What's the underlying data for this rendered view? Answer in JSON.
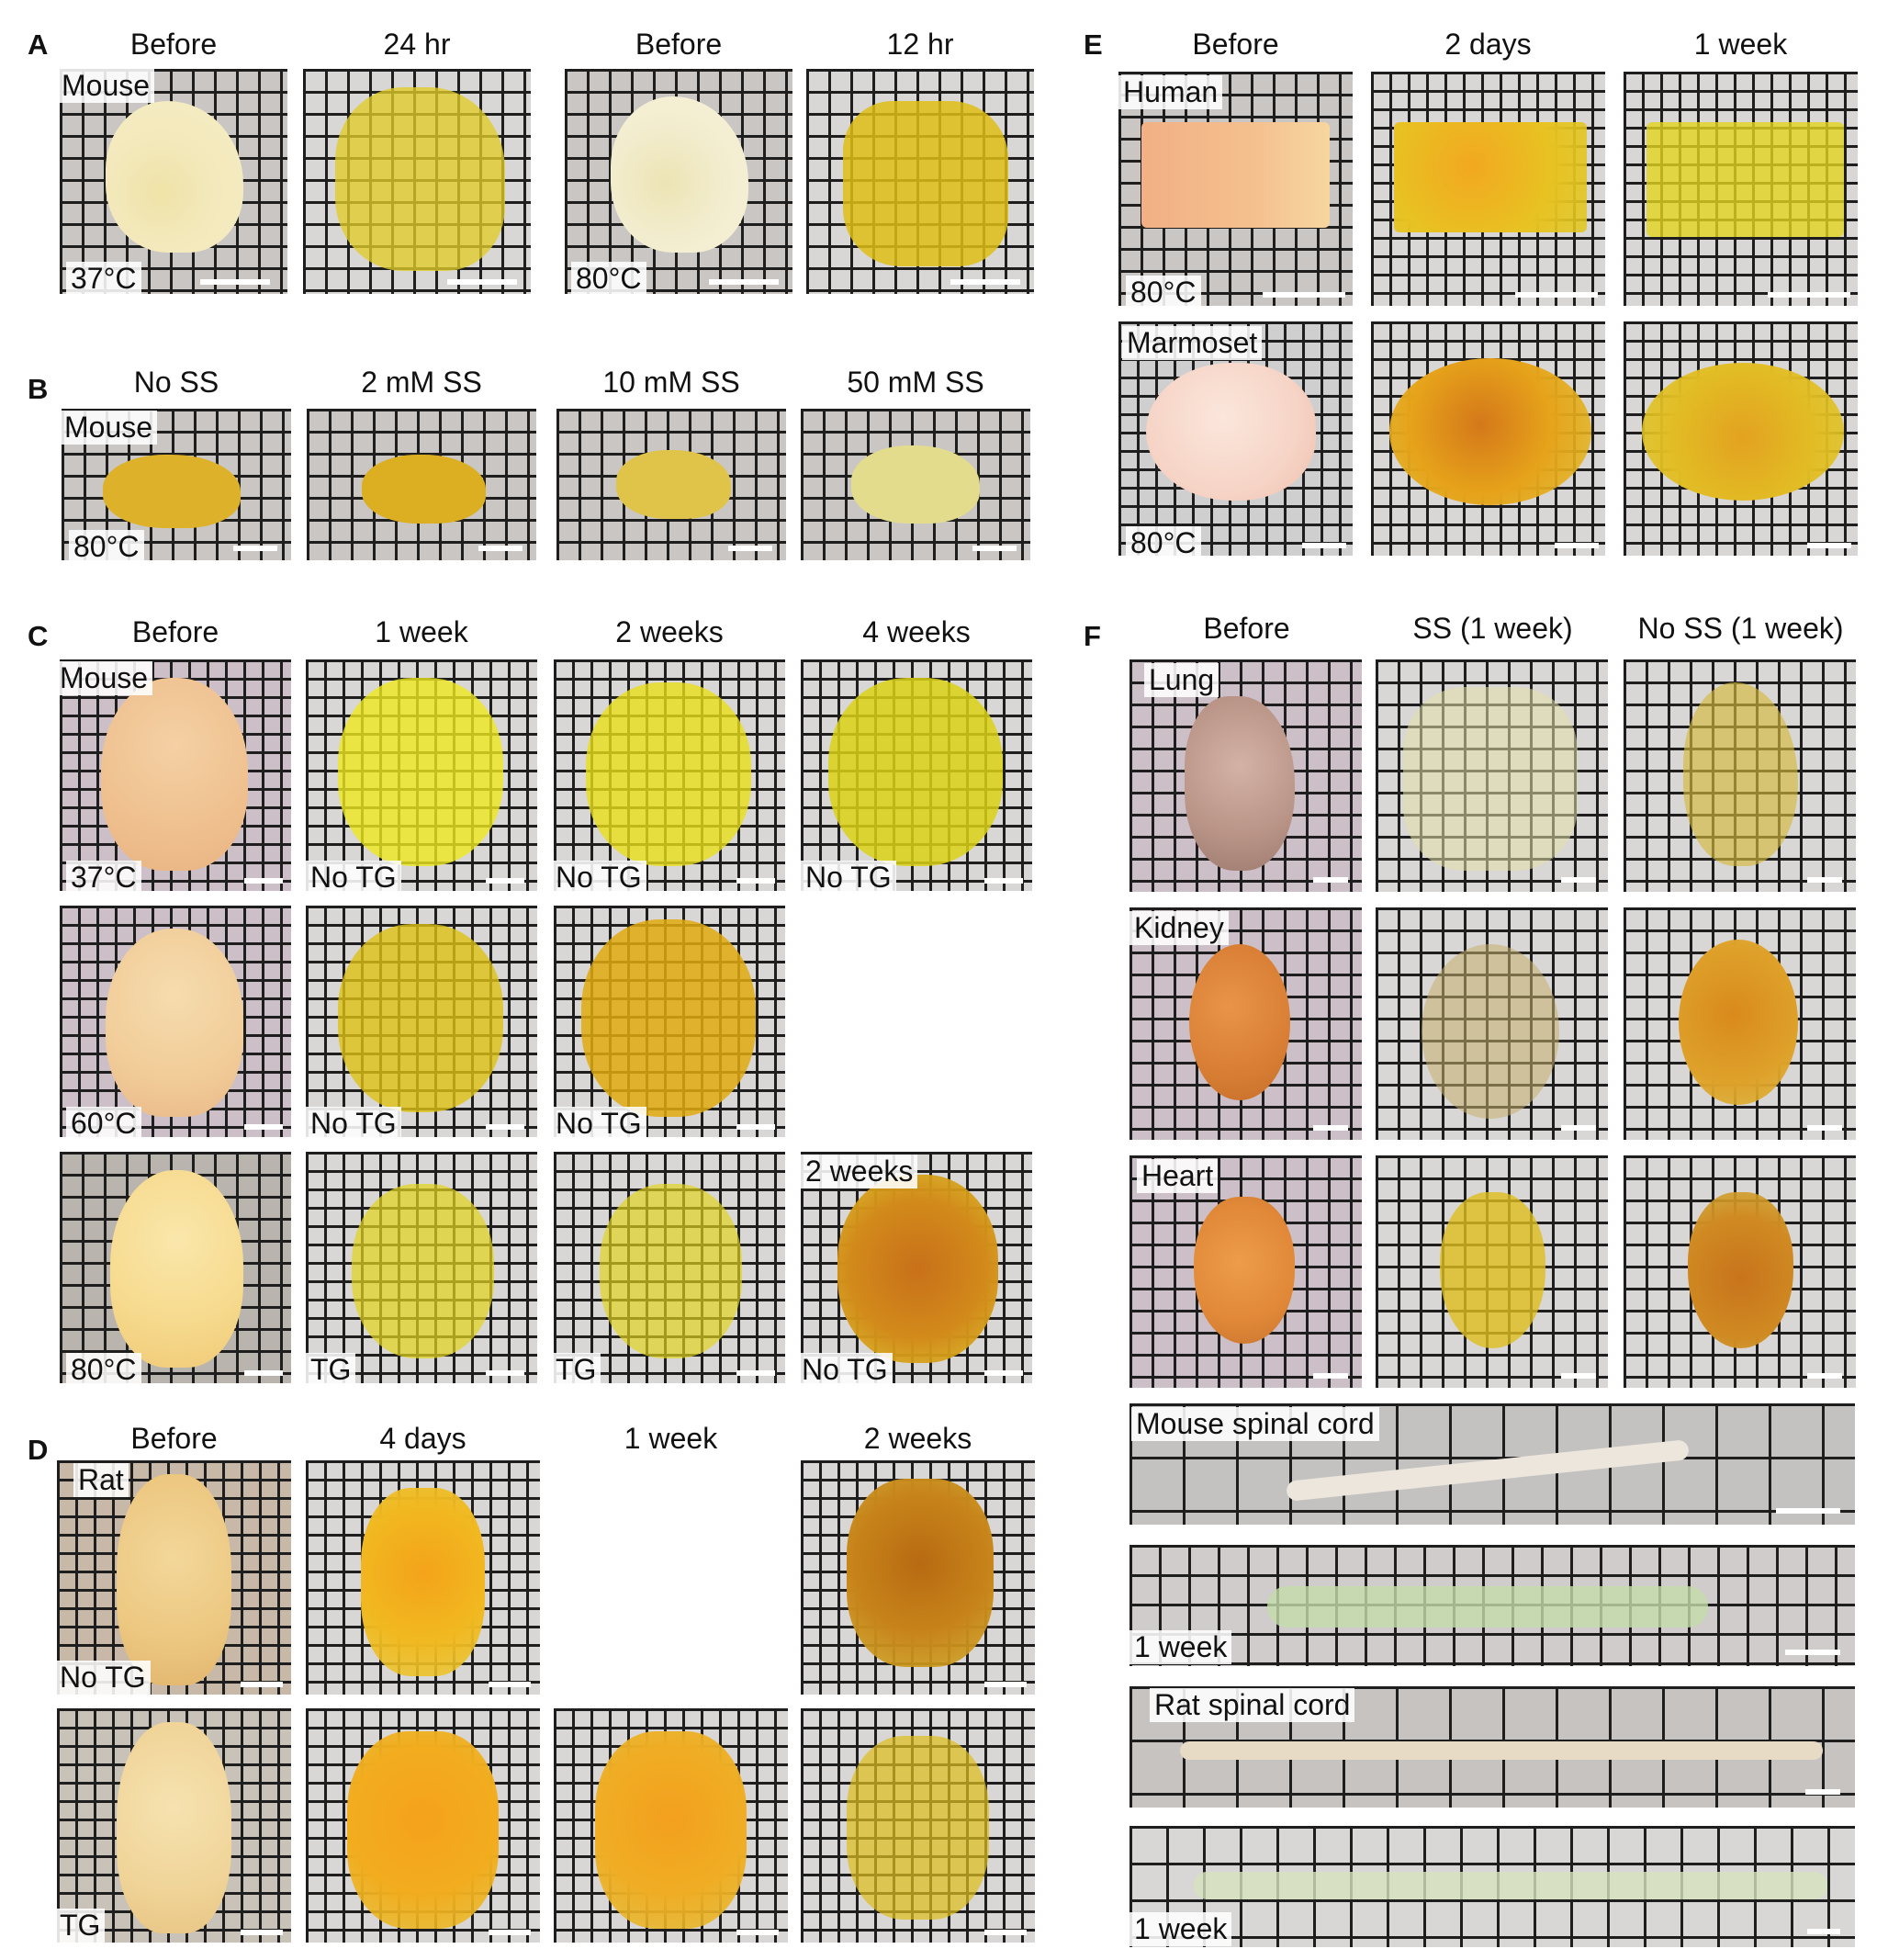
{
  "panel_labels": {
    "A": "A",
    "B": "B",
    "C": "C",
    "D": "D",
    "E": "E",
    "F": "F"
  },
  "panelA": {
    "headers": [
      "Before",
      "24 hr",
      "Before",
      "12 hr"
    ],
    "labels": {
      "species": "Mouse",
      "temp1": "37°C",
      "temp2": "80°C"
    }
  },
  "panelB": {
    "headers": [
      "No SS",
      "2 mM SS",
      "10 mM SS",
      "50 mM SS"
    ],
    "labels": {
      "species": "Mouse",
      "temp": "80°C"
    }
  },
  "panelC": {
    "headers": [
      "Before",
      "1 week",
      "2 weeks",
      "4 weeks"
    ],
    "labels": {
      "species": "Mouse",
      "temp37": "37°C",
      "temp60": "60°C",
      "temp80": "80°C",
      "no_tg": "No TG",
      "tg": "TG",
      "two_weeks": "2 weeks"
    }
  },
  "panelD": {
    "headers": [
      "Before",
      "4 days",
      "1 week",
      "2 weeks"
    ],
    "labels": {
      "species": "Rat",
      "no_tg": "No TG",
      "tg": "TG"
    }
  },
  "panelE": {
    "headers": [
      "Before",
      "2 days",
      "1 week"
    ],
    "labels": {
      "human": "Human",
      "marmoset": "Marmoset",
      "temp": "80°C"
    }
  },
  "panelF": {
    "headers": [
      "Before",
      "SS (1 week)",
      "No SS (1 week)"
    ],
    "labels": {
      "lung": "Lung",
      "kidney": "Kidney",
      "heart": "Heart",
      "mouse_cord": "Mouse spinal cord",
      "rat_cord": "Rat spinal cord",
      "one_week": "1 week"
    }
  },
  "colors": {
    "grid_line": "#1e1e1e",
    "cleared_yellow": "#e6d21e",
    "brain_before": "#f1dfae"
  }
}
